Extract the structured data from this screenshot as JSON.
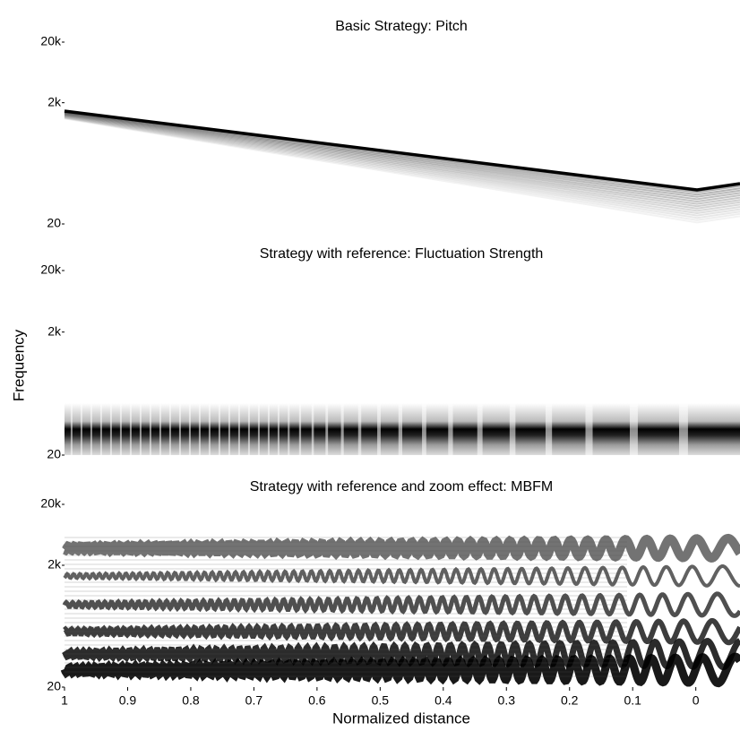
{
  "chart_data": [
    {
      "type": "spectrogram",
      "title": "Basic Strategy: Pitch",
      "yscale": "log",
      "ylim": [
        20,
        20000
      ],
      "yticks": [
        20,
        {
          "value": 2000,
          "label": "2k"
        },
        {
          "value": 20000,
          "label": "20k"
        }
      ],
      "xlim": [
        1,
        -0.07
      ]
    },
    {
      "type": "spectrogram",
      "title": "Strategy with reference: Fluctuation Strength",
      "yscale": "log",
      "ylim": [
        20,
        20000
      ],
      "yticks": [
        20,
        {
          "value": 2000,
          "label": "2k"
        },
        {
          "value": 20000,
          "label": "20k"
        }
      ],
      "xlim": [
        1,
        -0.07
      ],
      "ylabel": "Frequency"
    },
    {
      "type": "spectrogram",
      "title": "Strategy with reference and zoom effect: MBFM",
      "yscale": "log",
      "ylim": [
        20,
        20000
      ],
      "yticks": [
        20,
        {
          "value": 2000,
          "label": "2k"
        },
        {
          "value": 20000,
          "label": "20k"
        }
      ],
      "xlim": [
        1,
        -0.07
      ],
      "xticks": [
        1,
        0.9,
        0.8,
        0.7,
        0.6,
        0.5,
        0.4,
        0.3,
        0.2,
        0.1,
        0
      ],
      "xlabel": "Normalized distance"
    }
  ]
}
